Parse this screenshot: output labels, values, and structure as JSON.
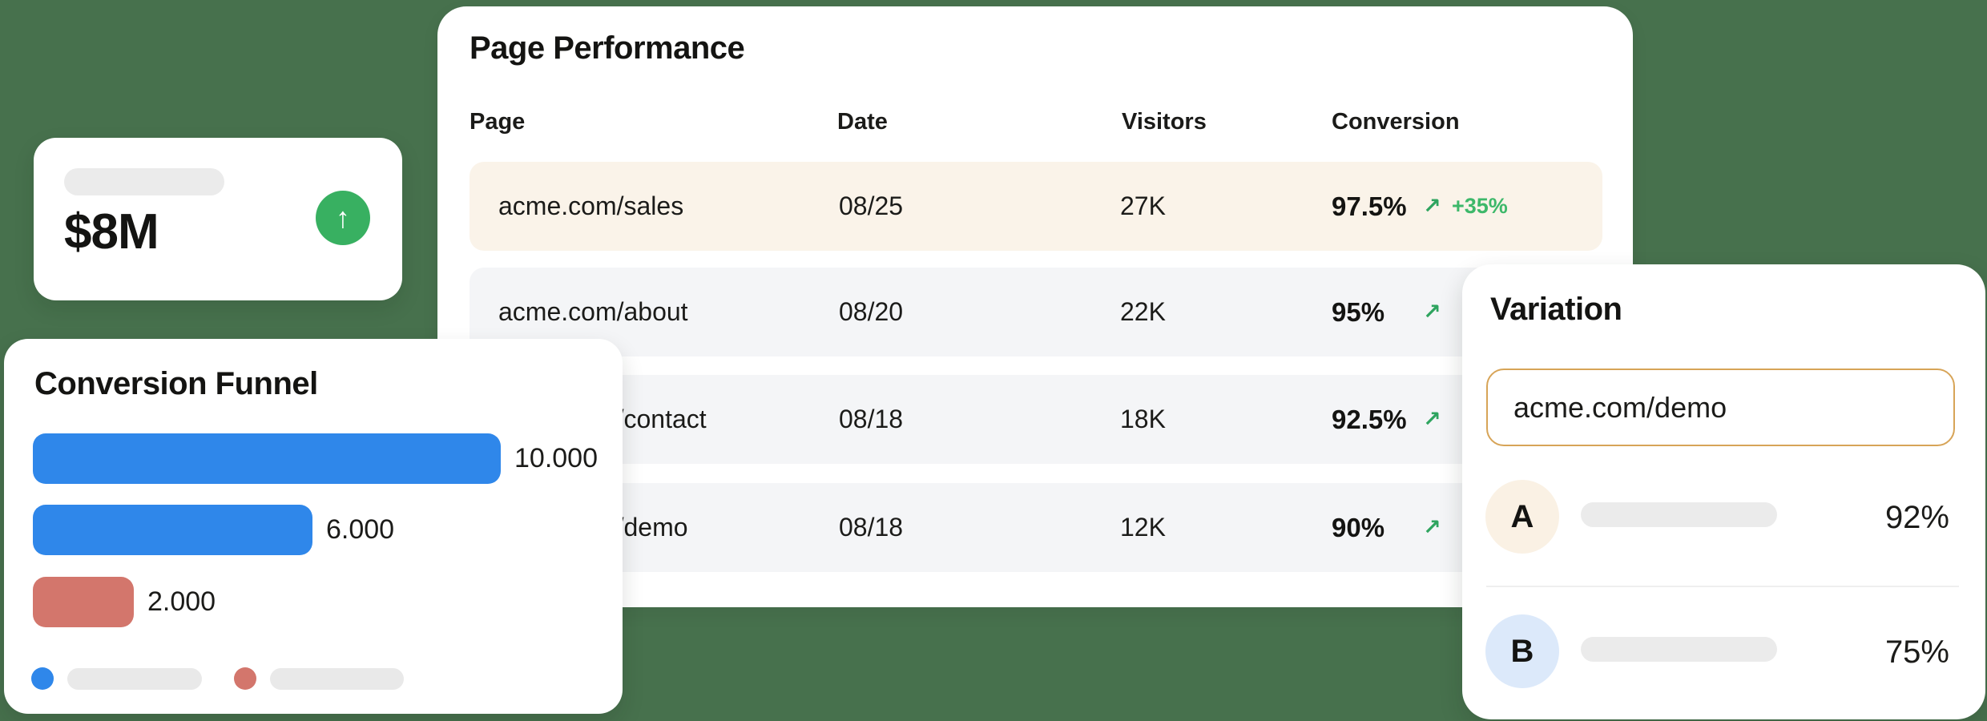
{
  "background_color": "#47714D",
  "icons": {
    "trend_up": "↗",
    "stat_up": "↑"
  },
  "stat_card": {
    "value": "$8M",
    "trend_icon": "up-arrow",
    "trend_color": "#38B061"
  },
  "page_performance": {
    "title": "Page Performance",
    "columns": [
      "Page",
      "Date",
      "Visitors",
      "Conversion"
    ],
    "highlight_color": "#FAF3E9",
    "row_color": "#F4F5F7",
    "rows": [
      {
        "page": "acme.com/sales",
        "date": "08/25",
        "visitors": "27K",
        "conversion": "97.5%",
        "delta": "+35%"
      },
      {
        "page": "acme.com/about",
        "date": "08/20",
        "visitors": "22K",
        "conversion": "95%",
        "delta": ""
      },
      {
        "page": "acme.com/contact",
        "date": "08/18",
        "visitors": "18K",
        "conversion": "92.5%",
        "delta": ""
      },
      {
        "page": "acme.com/demo",
        "date": "08/18",
        "visitors": "12K",
        "conversion": "90%",
        "delta": ""
      }
    ]
  },
  "conversion_funnel": {
    "title": "Conversion Funnel"
  },
  "chart_data": {
    "type": "bar",
    "orientation": "horizontal",
    "title": "Conversion Funnel",
    "values": [
      10000,
      6000,
      2000
    ],
    "labels": [
      "10.000",
      "6.000",
      "2.000"
    ],
    "bar_colors": [
      "#2F87EA",
      "#2F87EA",
      "#D3766C"
    ],
    "xlim": [
      0,
      10000
    ],
    "grid": false,
    "legend": {
      "position": "bottom",
      "swatches": [
        "#2F87EA",
        "#D3766C"
      ],
      "entries_are_placeholders": true
    }
  },
  "variation": {
    "title": "Variation",
    "input_value": "acme.com/demo",
    "input_border_color": "#D7A457",
    "rows": [
      {
        "label": "A",
        "value": "92%",
        "badge_color": "#FAF1E4"
      },
      {
        "label": "B",
        "value": "75%",
        "badge_color": "#DCE9FA"
      }
    ]
  }
}
